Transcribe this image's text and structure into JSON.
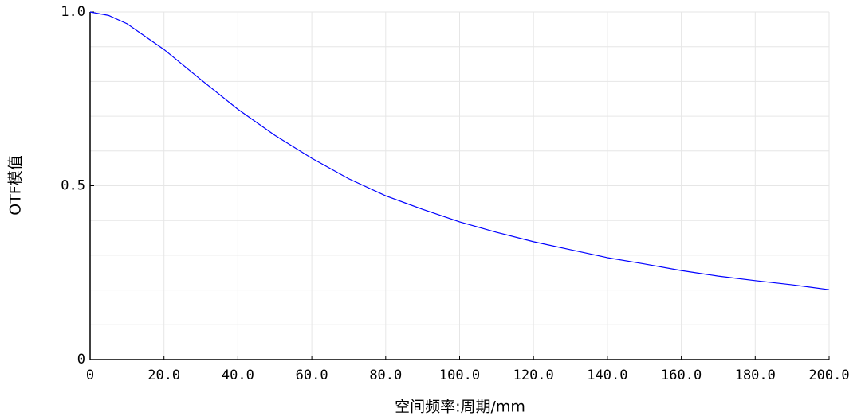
{
  "chart_data": {
    "type": "line",
    "xlabel": "空间频率:周期/mm",
    "ylabel": "OTF模值",
    "x": [
      0,
      5,
      10,
      20,
      30,
      40,
      50,
      60,
      70,
      80,
      90,
      100,
      110,
      120,
      130,
      140,
      150,
      160,
      170,
      180,
      190,
      200
    ],
    "series": [
      {
        "color": "#0000ff",
        "values": [
          1.0,
          0.99,
          0.966,
          0.892,
          0.805,
          0.72,
          0.645,
          0.579,
          0.52,
          0.471,
          0.432,
          0.396,
          0.366,
          0.339,
          0.316,
          0.293,
          0.275,
          0.256,
          0.24,
          0.227,
          0.215,
          0.201
        ]
      }
    ],
    "xlim": [
      0,
      200
    ],
    "xticks": [
      0,
      {
        "value": 20,
        "label": "20.0"
      },
      {
        "value": 40,
        "label": "40.0"
      },
      {
        "value": 60,
        "label": "60.0"
      },
      {
        "value": 80,
        "label": "80.0"
      },
      {
        "value": 100,
        "label": "100.0"
      },
      {
        "value": 120,
        "label": "120.0"
      },
      {
        "value": 140,
        "label": "140.0"
      },
      {
        "value": 160,
        "label": "160.0"
      },
      {
        "value": 180,
        "label": "180.0"
      },
      {
        "value": 200,
        "label": "200.0"
      }
    ],
    "ylim": [
      0,
      1
    ],
    "yticks": [
      0,
      0.5,
      {
        "value": 1,
        "label": "1.0"
      }
    ],
    "ygrid": [
      0.1,
      0.2,
      0.3,
      0.4,
      0.6,
      0.7,
      0.8,
      0.9
    ],
    "grid": true
  }
}
